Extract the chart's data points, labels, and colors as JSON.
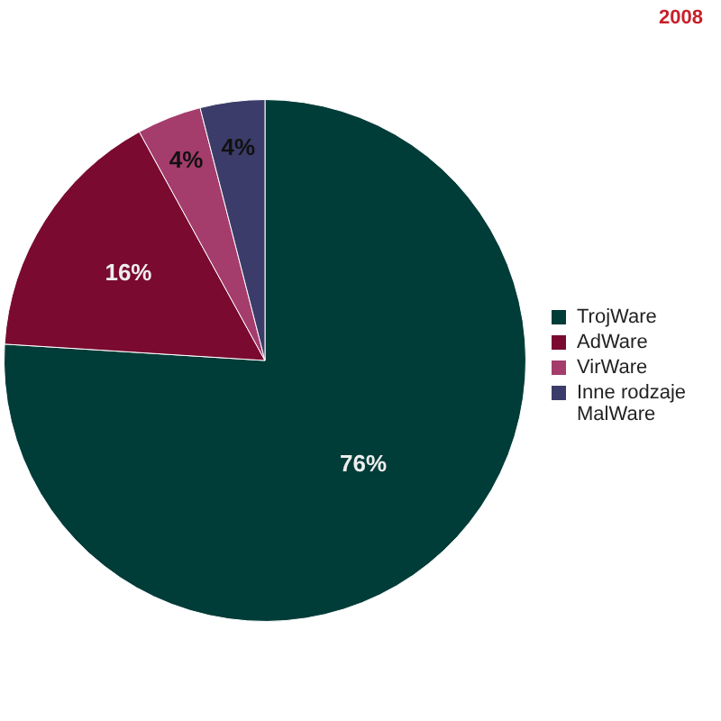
{
  "chart_data": {
    "type": "pie",
    "categories": [
      "TrojWare",
      "AdWare",
      "VirWare",
      "Inne rodzaje MalWare"
    ],
    "values": [
      76,
      16,
      4,
      4
    ],
    "colors": [
      "#003c38",
      "#7a0a30",
      "#a43c6c",
      "#3c3c6a"
    ],
    "value_labels": [
      "76%",
      "16%",
      "4%",
      "4%"
    ],
    "legend": "right",
    "annotations": [
      "2008"
    ]
  }
}
